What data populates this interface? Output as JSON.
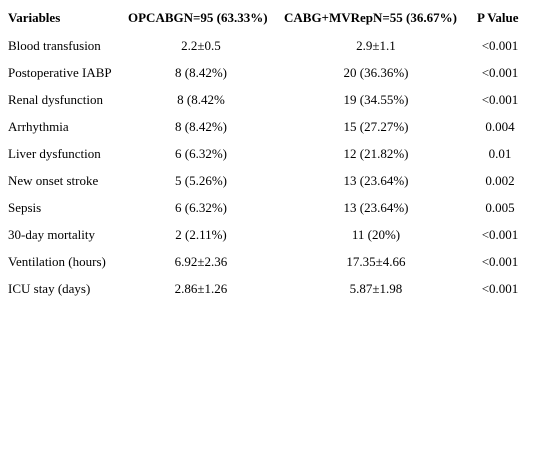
{
  "table": {
    "headers": {
      "variables": "Variables",
      "opcabg": "OPCABGN=95 (63.33%)",
      "cabg_mvrep": "CABG+MVRepN=55 (36.67%)",
      "p_value": "P Value"
    },
    "rows": [
      {
        "variable": "Blood transfusion",
        "opcabg": "2.2±0.5",
        "cabg_mvrep": "2.9±1.1",
        "p": "<0.001"
      },
      {
        "variable": "Postoperative IABP",
        "opcabg": "8 (8.42%)",
        "cabg_mvrep": "20 (36.36%)",
        "p": "<0.001"
      },
      {
        "variable": "Renal dysfunction",
        "opcabg": "8 (8.42%",
        "cabg_mvrep": "19 (34.55%)",
        "p": "<0.001"
      },
      {
        "variable": "Arrhythmia",
        "opcabg": "8 (8.42%)",
        "cabg_mvrep": "15 (27.27%)",
        "p": "0.004"
      },
      {
        "variable": "Liver dysfunction",
        "opcabg": "6 (6.32%)",
        "cabg_mvrep": "12 (21.82%)",
        "p": "0.01"
      },
      {
        "variable": "New onset stroke",
        "opcabg": "5 (5.26%)",
        "cabg_mvrep": "13 (23.64%)",
        "p": "0.002"
      },
      {
        "variable": "Sepsis",
        "opcabg": "6 (6.32%)",
        "cabg_mvrep": "13 (23.64%)",
        "p": "0.005"
      },
      {
        "variable": "30-day mortality",
        "opcabg": "2 (2.11%)",
        "cabg_mvrep": "11 (20%)",
        "p": "<0.001"
      },
      {
        "variable": "Ventilation (hours)",
        "opcabg": "6.92±2.36",
        "cabg_mvrep": "17.35±4.66",
        "p": "<0.001"
      },
      {
        "variable": "ICU stay (days)",
        "opcabg": "2.86±1.26",
        "cabg_mvrep": "5.87±1.98",
        "p": "<0.001"
      }
    ]
  }
}
